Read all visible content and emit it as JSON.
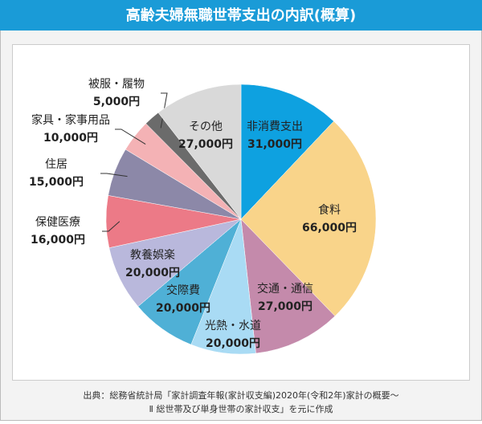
{
  "chart_data": {
    "type": "pie",
    "title": "高齢夫婦無職世帯支出の内訳(概算)",
    "categories": [
      "非消費支出",
      "食料",
      "交通・通信",
      "光熱・水道",
      "交際費",
      "教養娯楽",
      "保健医療",
      "住居",
      "家具・家事用品",
      "被服・履物",
      "その他"
    ],
    "values": [
      31000,
      66000,
      27000,
      20000,
      20000,
      20000,
      16000,
      15000,
      10000,
      5000,
      27000
    ],
    "value_labels": [
      "31,000円",
      "66,000円",
      "27,000円",
      "20,000円",
      "20,000円",
      "20,000円",
      "16,000円",
      "15,000円",
      "10,000円",
      "5,000円",
      "27,000円"
    ],
    "colors": [
      "#0ea1e0",
      "#f9d48a",
      "#c48aab",
      "#a9dbf4",
      "#4fb0d6",
      "#b9b8dc",
      "#ec7a87",
      "#8c88a8",
      "#f4b2b5",
      "#6b6b6b",
      "#d9d9d9"
    ],
    "source": [
      "出典：総務省統計局「家計調査年報(家計収支編)2020年(令和2年)家計の概要～",
      "Ⅱ 総世帯及び単身世帯の家計収支」を元に作成"
    ]
  }
}
